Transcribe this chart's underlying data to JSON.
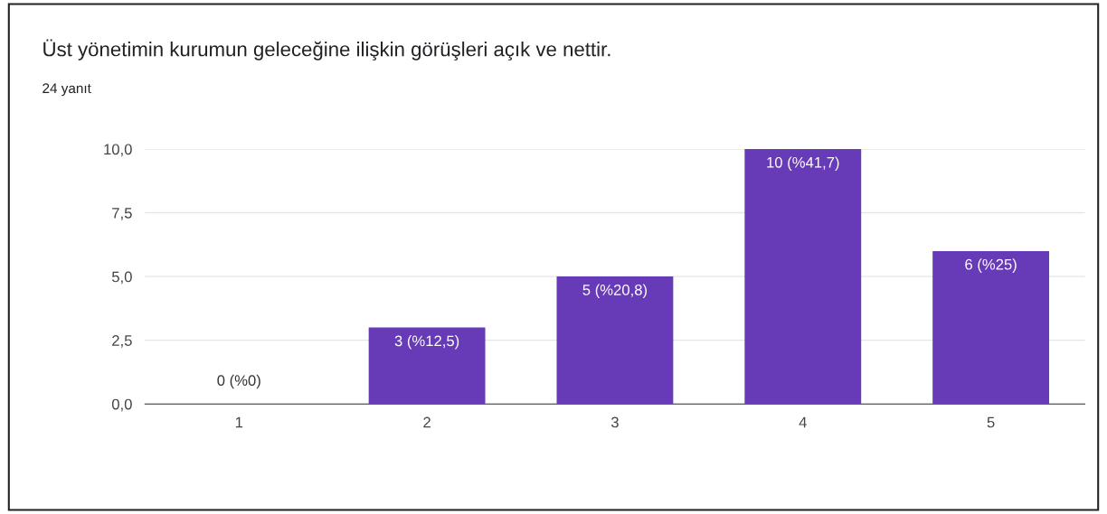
{
  "chart_data": {
    "type": "bar",
    "title": "Üst yönetimin kurumun geleceğine ilişkin görüşleri açık ve nettir.",
    "subtitle": "24 yanıt",
    "categories": [
      "1",
      "2",
      "3",
      "4",
      "5"
    ],
    "values": [
      0,
      3,
      5,
      10,
      6
    ],
    "value_labels": [
      "0 (%0)",
      "3 (%12,5)",
      "5 (%20,8)",
      "10 (%41,7)",
      "6 (%25)"
    ],
    "color": "#673ab7",
    "ylim": [
      0,
      10
    ],
    "yticks": [
      {
        "value": 0,
        "label": "0,0"
      },
      {
        "value": 2.5,
        "label": "2,5"
      },
      {
        "value": 5,
        "label": "5,0"
      },
      {
        "value": 7.5,
        "label": "7,5"
      },
      {
        "value": 10,
        "label": "10,0"
      }
    ],
    "grid": "y"
  }
}
